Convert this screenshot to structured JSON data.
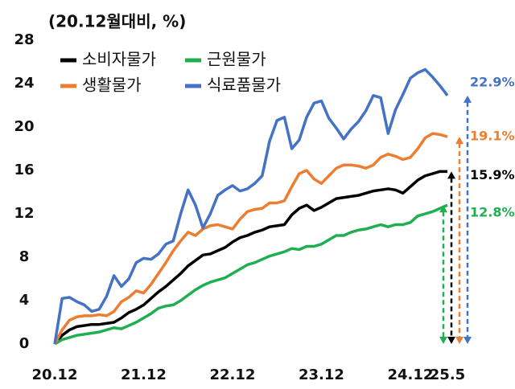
{
  "chart_data": {
    "type": "line",
    "title": "(20.12월대비, %)",
    "categories": [
      "20.12",
      null,
      null,
      null,
      null,
      null,
      null,
      null,
      null,
      null,
      null,
      null,
      "21.12",
      null,
      null,
      null,
      null,
      null,
      null,
      null,
      null,
      null,
      null,
      null,
      "22.12",
      null,
      null,
      null,
      null,
      null,
      null,
      null,
      null,
      null,
      null,
      null,
      "23.12",
      null,
      null,
      null,
      null,
      null,
      null,
      null,
      null,
      null,
      null,
      null,
      "24.12",
      null,
      null,
      null,
      null,
      "25.5"
    ],
    "ylim": [
      0,
      28
    ],
    "yticks": [
      0,
      4,
      8,
      12,
      16,
      20,
      24,
      28
    ],
    "series": [
      {
        "name": "소비자물가",
        "color": "#000000",
        "values": [
          0,
          0.8,
          1.3,
          1.6,
          1.7,
          1.8,
          1.8,
          1.9,
          2.0,
          2.4,
          2.9,
          3.2,
          3.6,
          4.2,
          4.8,
          5.3,
          5.9,
          6.5,
          7.2,
          7.7,
          8.2,
          8.3,
          8.6,
          8.9,
          9.4,
          9.8,
          10.0,
          10.3,
          10.5,
          10.8,
          10.9,
          11.0,
          11.9,
          12.5,
          12.8,
          12.3,
          12.6,
          13.0,
          13.4,
          13.5,
          13.6,
          13.7,
          13.9,
          14.1,
          14.2,
          14.3,
          14.2,
          13.9,
          14.5,
          15.1,
          15.5,
          15.7,
          15.9,
          15.9
        ],
        "value_labels": [
          null,
          null,
          null,
          null,
          null,
          null,
          null,
          null,
          null,
          null,
          null,
          null,
          null,
          null,
          null,
          null,
          null,
          null,
          null,
          null,
          null,
          null,
          null,
          null,
          null,
          null,
          null,
          null,
          null,
          null,
          null,
          null,
          null,
          null,
          null,
          null,
          null,
          null,
          null,
          null,
          null,
          null,
          null,
          null,
          null,
          null,
          null,
          null,
          null,
          null,
          null,
          null,
          null,
          "15.9%"
        ]
      },
      {
        "name": "근원물가",
        "color": "#1fae50",
        "values": [
          0,
          0.4,
          0.6,
          0.8,
          0.9,
          1.0,
          1.1,
          1.3,
          1.5,
          1.4,
          1.7,
          2.0,
          2.4,
          2.8,
          3.3,
          3.5,
          3.6,
          4.0,
          4.5,
          5.0,
          5.4,
          5.7,
          5.9,
          6.1,
          6.5,
          6.9,
          7.3,
          7.5,
          7.8,
          8.1,
          8.3,
          8.5,
          8.8,
          8.7,
          9.0,
          9.0,
          9.2,
          9.6,
          10.0,
          10.0,
          10.3,
          10.5,
          10.6,
          10.8,
          11.0,
          10.8,
          11.0,
          11.0,
          11.2,
          11.8,
          12.0,
          12.2,
          12.5,
          12.8
        ],
        "value_labels": [
          null,
          null,
          null,
          null,
          null,
          null,
          null,
          null,
          null,
          null,
          null,
          null,
          null,
          null,
          null,
          null,
          null,
          null,
          null,
          null,
          null,
          null,
          null,
          null,
          null,
          null,
          null,
          null,
          null,
          null,
          null,
          null,
          null,
          null,
          null,
          null,
          null,
          null,
          null,
          null,
          null,
          null,
          null,
          null,
          null,
          null,
          null,
          null,
          null,
          null,
          null,
          null,
          null,
          "12.8%"
        ]
      },
      {
        "name": "생활물가",
        "color": "#ed7d31",
        "values": [
          0,
          1.3,
          2.2,
          2.5,
          2.6,
          2.6,
          2.7,
          2.6,
          3.0,
          3.9,
          4.3,
          4.9,
          4.7,
          5.5,
          6.5,
          7.5,
          8.6,
          9.5,
          10.3,
          10.0,
          10.6,
          10.9,
          11.0,
          10.8,
          10.6,
          11.5,
          12.2,
          12.4,
          12.5,
          13.0,
          13.0,
          13.2,
          14.5,
          15.7,
          16.0,
          15.2,
          14.8,
          15.5,
          16.2,
          16.5,
          16.5,
          16.4,
          16.2,
          16.5,
          17.2,
          17.5,
          17.3,
          17.0,
          17.2,
          18.0,
          19.0,
          19.4,
          19.3,
          19.1
        ],
        "value_labels": [
          null,
          null,
          null,
          null,
          null,
          null,
          null,
          null,
          null,
          null,
          null,
          null,
          null,
          null,
          null,
          null,
          null,
          null,
          null,
          null,
          null,
          null,
          null,
          null,
          null,
          null,
          null,
          null,
          null,
          null,
          null,
          null,
          null,
          null,
          null,
          null,
          null,
          null,
          null,
          null,
          null,
          null,
          null,
          null,
          null,
          null,
          null,
          null,
          null,
          null,
          null,
          null,
          null,
          "19.1%"
        ]
      },
      {
        "name": "식료품물가",
        "color": "#4472c4",
        "values": [
          0,
          4.2,
          4.3,
          3.9,
          3.6,
          3.0,
          3.2,
          4.4,
          6.3,
          5.3,
          6.0,
          7.5,
          7.9,
          7.8,
          8.3,
          9.2,
          9.5,
          12.0,
          14.2,
          12.8,
          10.7,
          12.0,
          13.7,
          14.2,
          14.6,
          14.1,
          14.3,
          14.8,
          15.5,
          18.7,
          20.6,
          20.9,
          18.0,
          18.8,
          20.9,
          22.2,
          22.4,
          20.8,
          19.9,
          18.9,
          19.8,
          20.5,
          21.5,
          22.9,
          22.7,
          19.4,
          21.6,
          23.0,
          24.5,
          25.0,
          25.3,
          24.6,
          23.8,
          22.9
        ],
        "value_labels": [
          null,
          null,
          null,
          null,
          null,
          null,
          null,
          null,
          null,
          null,
          null,
          null,
          null,
          null,
          null,
          null,
          null,
          null,
          null,
          null,
          null,
          null,
          null,
          null,
          null,
          null,
          null,
          null,
          null,
          null,
          null,
          null,
          null,
          null,
          null,
          null,
          null,
          null,
          null,
          null,
          null,
          null,
          null,
          null,
          null,
          null,
          null,
          null,
          null,
          null,
          null,
          null,
          null,
          "22.9%"
        ]
      }
    ]
  }
}
